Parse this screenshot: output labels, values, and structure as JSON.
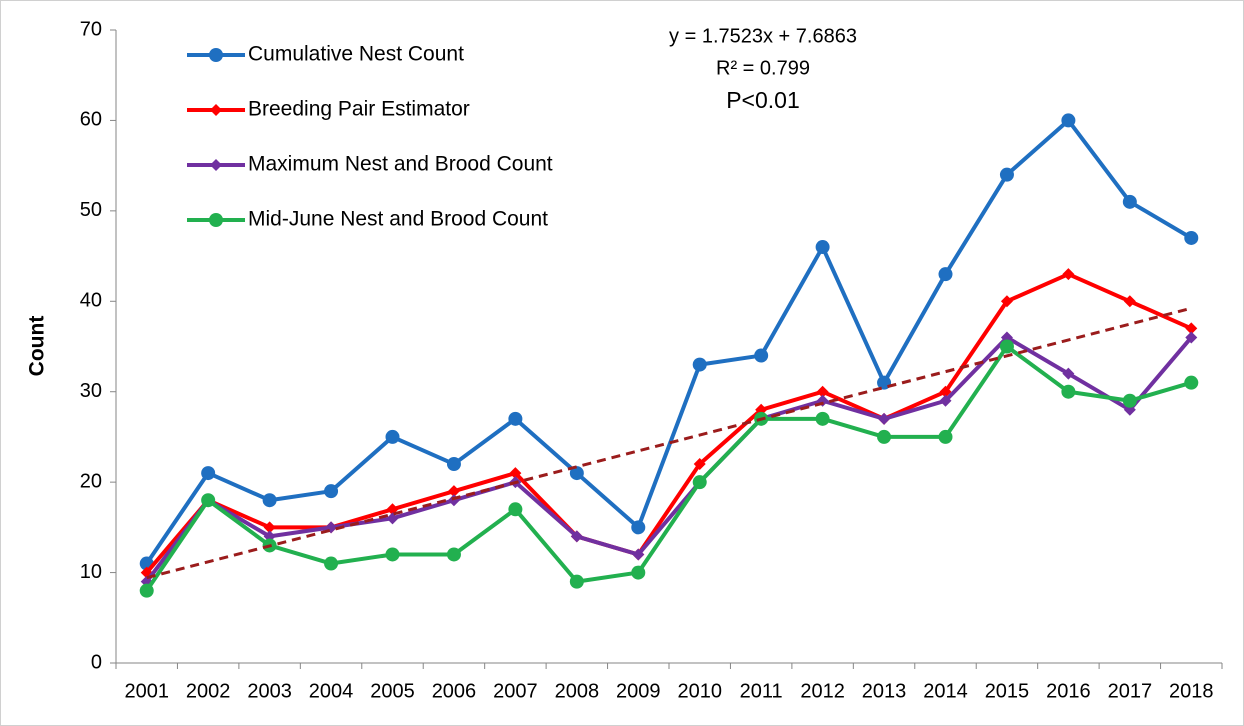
{
  "chart_data": {
    "type": "line",
    "y_label": "Count",
    "categories": [
      "2001",
      "2002",
      "2003",
      "2004",
      "2005",
      "2006",
      "2007",
      "2008",
      "2009",
      "2010",
      "2011",
      "2012",
      "2013",
      "2014",
      "2015",
      "2016",
      "2017",
      "2018"
    ],
    "series": [
      {
        "name": "Cumulative Nest Count",
        "color": "#1f6fc1",
        "marker": "circle",
        "values": [
          11,
          21,
          18,
          19,
          25,
          22,
          27,
          21,
          15,
          33,
          34,
          46,
          31,
          43,
          54,
          60,
          51,
          47
        ]
      },
      {
        "name": "Breeding Pair Estimator",
        "color": "#ff0000",
        "marker": "diamond",
        "values": [
          10,
          18,
          15,
          15,
          17,
          19,
          21,
          14,
          12,
          22,
          28,
          30,
          27,
          30,
          40,
          43,
          40,
          37
        ]
      },
      {
        "name": "Maximum Nest and Brood Count",
        "color": "#7030a0",
        "marker": "diamond",
        "values": [
          9,
          18,
          14,
          15,
          16,
          18,
          20,
          14,
          12,
          20,
          27,
          29,
          27,
          29,
          36,
          32,
          28,
          36
        ]
      },
      {
        "name": "Mid-June Nest and Brood Count",
        "color": "#22b04f",
        "marker": "circle",
        "values": [
          8,
          18,
          13,
          11,
          12,
          12,
          17,
          9,
          10,
          20,
          27,
          27,
          25,
          25,
          35,
          30,
          29,
          31
        ]
      }
    ],
    "trendline": {
      "slope": 1.7523,
      "intercept": 7.6863,
      "color": "#9b1c1c",
      "dashed": true
    },
    "annotations": [
      "y = 1.7523x + 7.6863",
      "R² = 0.799",
      "P<0.01"
    ],
    "ylim": [
      0,
      70
    ],
    "yticks": [
      0,
      10,
      20,
      30,
      40,
      50,
      60,
      70
    ],
    "grid": false,
    "legend": "top-left"
  }
}
